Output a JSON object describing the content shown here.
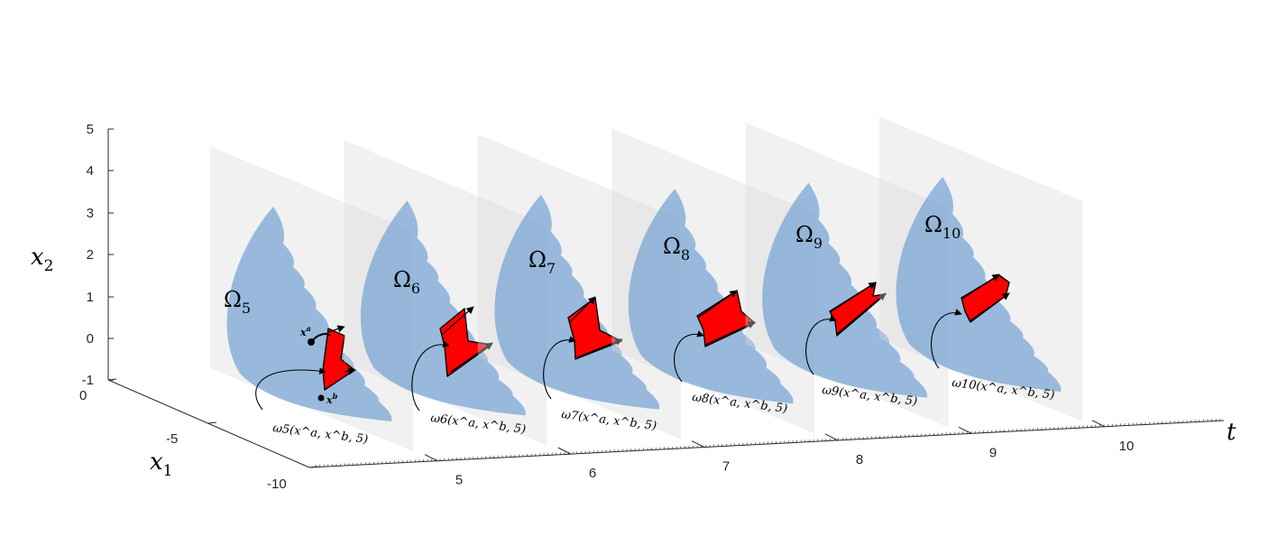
{
  "axes": {
    "x2": {
      "symbol": "x",
      "sub": "2",
      "ticks": [
        "5",
        "4",
        "3",
        "2",
        "1",
        "0",
        "-1"
      ]
    },
    "x1": {
      "symbol": "x",
      "sub": "1",
      "ticks": [
        "0",
        "-5",
        "-10"
      ]
    },
    "t": {
      "symbol": "t",
      "ticks": [
        "5",
        "6",
        "7",
        "8",
        "9",
        "10"
      ]
    }
  },
  "points": {
    "a": "x",
    "a_sup": "a",
    "b": "x",
    "b_sup": "b"
  },
  "slices": [
    {
      "omega": "Ω",
      "omega_sub": "5",
      "map_label": "ω5(x^a, x^b, 5)"
    },
    {
      "omega": "Ω",
      "omega_sub": "6",
      "map_label": "ω6(x^a, x^b, 5)"
    },
    {
      "omega": "Ω",
      "omega_sub": "7",
      "map_label": "ω7(x^a, x^b, 5)"
    },
    {
      "omega": "Ω",
      "omega_sub": "8",
      "map_label": "ω8(x^a, x^b, 5)"
    },
    {
      "omega": "Ω",
      "omega_sub": "9",
      "map_label": "ω9(x^a, x^b, 5)"
    },
    {
      "omega": "Ω",
      "omega_sub": "10",
      "map_label": "ω10(x^a, x^b, 5)"
    }
  ],
  "colors": {
    "plane": "#d9d9d9",
    "region": "#7aa6d4",
    "reach_set": "#ff0000",
    "axis": "#262626"
  }
}
